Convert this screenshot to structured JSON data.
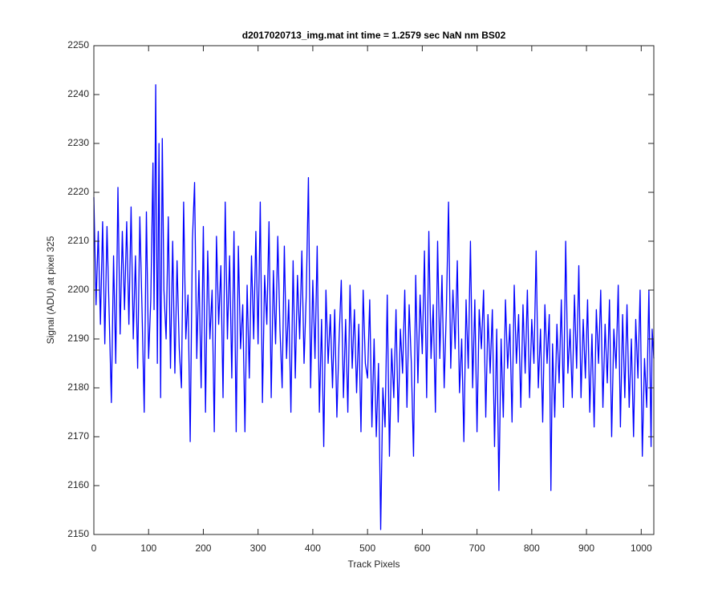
{
  "chart_data": {
    "type": "line",
    "title": "d2017020713_img.mat int time = 1.2579 sec  NaN nm BS02",
    "x_label": "Track Pixels",
    "y_label": "Signal (ADU) at pixel 325",
    "xlim": [
      0,
      1023
    ],
    "ylim": [
      2150,
      2250
    ],
    "xticks": [
      0,
      100,
      200,
      300,
      400,
      500,
      600,
      700,
      800,
      900,
      1000
    ],
    "yticks": [
      2150,
      2160,
      2170,
      2180,
      2190,
      2200,
      2210,
      2220,
      2230,
      2240,
      2250
    ],
    "box": true,
    "x": [
      0,
      4,
      8,
      12,
      16,
      20,
      24,
      28,
      32,
      36,
      40,
      44,
      48,
      52,
      56,
      60,
      64,
      68,
      72,
      76,
      80,
      84,
      88,
      92,
      96,
      100,
      104,
      108,
      110,
      113,
      116,
      119,
      122,
      125,
      128,
      132,
      136,
      140,
      144,
      148,
      152,
      156,
      160,
      164,
      168,
      172,
      176,
      180,
      184,
      188,
      192,
      196,
      200,
      204,
      208,
      212,
      216,
      220,
      224,
      228,
      232,
      236,
      240,
      244,
      248,
      252,
      256,
      260,
      264,
      268,
      272,
      276,
      280,
      284,
      288,
      292,
      296,
      300,
      304,
      308,
      312,
      316,
      320,
      324,
      328,
      332,
      336,
      340,
      344,
      348,
      352,
      356,
      360,
      364,
      368,
      372,
      376,
      380,
      384,
      388,
      392,
      396,
      400,
      404,
      408,
      412,
      416,
      420,
      424,
      428,
      432,
      436,
      440,
      444,
      448,
      452,
      456,
      460,
      464,
      468,
      472,
      476,
      480,
      484,
      488,
      492,
      496,
      500,
      504,
      508,
      512,
      516,
      520,
      524,
      528,
      532,
      536,
      540,
      544,
      548,
      552,
      556,
      560,
      564,
      568,
      572,
      576,
      580,
      584,
      588,
      592,
      596,
      600,
      604,
      608,
      612,
      616,
      620,
      624,
      628,
      632,
      636,
      640,
      644,
      648,
      652,
      656,
      660,
      664,
      668,
      672,
      676,
      680,
      684,
      688,
      692,
      696,
      700,
      704,
      708,
      712,
      716,
      720,
      724,
      728,
      732,
      736,
      740,
      744,
      748,
      752,
      756,
      760,
      764,
      768,
      772,
      776,
      780,
      784,
      788,
      792,
      796,
      800,
      804,
      808,
      812,
      816,
      820,
      824,
      828,
      832,
      835,
      838,
      842,
      846,
      850,
      854,
      858,
      862,
      866,
      870,
      874,
      878,
      882,
      886,
      890,
      894,
      898,
      902,
      906,
      910,
      914,
      918,
      922,
      926,
      930,
      934,
      938,
      942,
      946,
      950,
      954,
      958,
      962,
      966,
      970,
      974,
      978,
      982,
      986,
      990,
      994,
      998,
      1002,
      1006,
      1010,
      1014,
      1018,
      1020,
      1023
    ],
    "series": [
      {
        "color": "#0000ff",
        "values": [
          2219,
          2197,
          2212,
          2193,
          2214,
          2189,
          2213,
          2195,
          2177,
          2207,
          2185,
          2221,
          2191,
          2212,
          2196,
          2214,
          2193,
          2217,
          2190,
          2207,
          2184,
          2215,
          2196,
          2175,
          2216,
          2186,
          2198,
          2226,
          2196,
          2242,
          2185,
          2230,
          2178,
          2231,
          2200,
          2190,
          2215,
          2184,
          2210,
          2183,
          2206,
          2188,
          2180,
          2218,
          2190,
          2199,
          2169,
          2210,
          2222,
          2186,
          2204,
          2180,
          2213,
          2175,
          2208,
          2190,
          2200,
          2171,
          2211,
          2193,
          2205,
          2178,
          2218,
          2190,
          2207,
          2182,
          2212,
          2171,
          2209,
          2188,
          2197,
          2171,
          2201,
          2182,
          2207,
          2190,
          2212,
          2189,
          2218,
          2177,
          2203,
          2193,
          2214,
          2178,
          2204,
          2189,
          2211,
          2192,
          2180,
          2209,
          2186,
          2198,
          2175,
          2206,
          2182,
          2203,
          2190,
          2208,
          2185,
          2199,
          2223,
          2180,
          2202,
          2186,
          2209,
          2175,
          2194,
          2168,
          2200,
          2185,
          2195,
          2180,
          2196,
          2174,
          2190,
          2202,
          2178,
          2194,
          2175,
          2201,
          2184,
          2196,
          2179,
          2193,
          2171,
          2200,
          2185,
          2182,
          2198,
          2172,
          2190,
          2170,
          2185,
          2151,
          2180,
          2172,
          2199,
          2166,
          2188,
          2178,
          2196,
          2173,
          2192,
          2183,
          2200,
          2176,
          2197,
          2185,
          2166,
          2203,
          2181,
          2199,
          2187,
          2208,
          2178,
          2212,
          2186,
          2197,
          2175,
          2210,
          2186,
          2203,
          2180,
          2196,
          2218,
          2184,
          2200,
          2188,
          2206,
          2179,
          2190,
          2169,
          2198,
          2184,
          2210,
          2180,
          2198,
          2171,
          2196,
          2188,
          2200,
          2174,
          2195,
          2183,
          2196,
          2168,
          2192,
          2159,
          2190,
          2174,
          2198,
          2184,
          2193,
          2173,
          2201,
          2185,
          2195,
          2176,
          2197,
          2183,
          2200,
          2178,
          2194,
          2185,
          2208,
          2180,
          2192,
          2173,
          2197,
          2185,
          2195,
          2159,
          2189,
          2174,
          2193,
          2181,
          2198,
          2176,
          2210,
          2183,
          2192,
          2178,
          2199,
          2184,
          2205,
          2178,
          2194,
          2182,
          2198,
          2175,
          2191,
          2172,
          2196,
          2185,
          2200,
          2176,
          2193,
          2181,
          2198,
          2170,
          2192,
          2184,
          2201,
          2172,
          2195,
          2178,
          2197,
          2176,
          2190,
          2170,
          2194,
          2182,
          2200,
          2166,
          2186,
          2176,
          2200,
          2168,
          2192,
          2186
        ]
      }
    ]
  }
}
